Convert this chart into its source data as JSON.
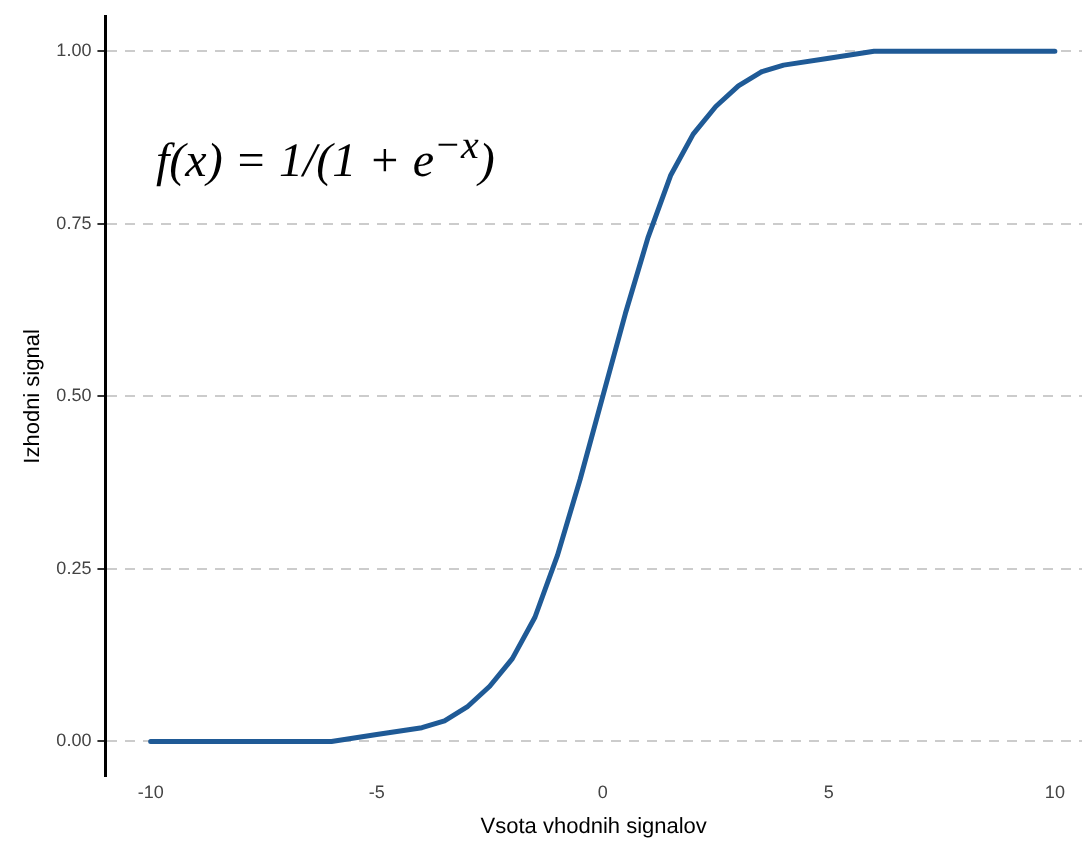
{
  "chart_data": {
    "type": "line",
    "xlabel": "Vsota vhodnih signalov",
    "ylabel": "Izhodni signal",
    "annotations": [
      "f(x) = 1/(1 + e$^{−x}$)"
    ],
    "x": [
      -10,
      -9,
      -8,
      -7,
      -6,
      -5,
      -4,
      -3.5,
      -3,
      -2.5,
      -2,
      -1.5,
      -1,
      -0.5,
      0,
      0.5,
      1,
      1.5,
      2,
      2.5,
      3,
      3.5,
      4,
      5,
      6,
      7,
      8,
      9,
      10
    ],
    "series": [
      {
        "color": "#1f5a96",
        "values": [
          0,
          0,
          0,
          0,
          0,
          0.01,
          0.02,
          0.03,
          0.05,
          0.08,
          0.12,
          0.18,
          0.27,
          0.38,
          0.5,
          0.62,
          0.73,
          0.82,
          0.88,
          0.92,
          0.95,
          0.97,
          0.98,
          0.99,
          1,
          1,
          1,
          1,
          1
        ]
      }
    ],
    "xlim": [
      -11,
      10.6
    ],
    "xticks": [
      -10,
      -5,
      0,
      5,
      10
    ],
    "ylim": [
      -0.05,
      1.05
    ],
    "yticks": [
      {
        "value": 0,
        "label": "0.00"
      },
      {
        "value": 0.25,
        "label": "0.25"
      },
      {
        "value": 0.5,
        "label": "0.50"
      },
      {
        "value": 0.75,
        "label": "0.75"
      },
      {
        "value": 1,
        "label": "1.00"
      }
    ],
    "grid": "y",
    "legend": false,
    "marker": "none",
    "line_style": "solid"
  }
}
